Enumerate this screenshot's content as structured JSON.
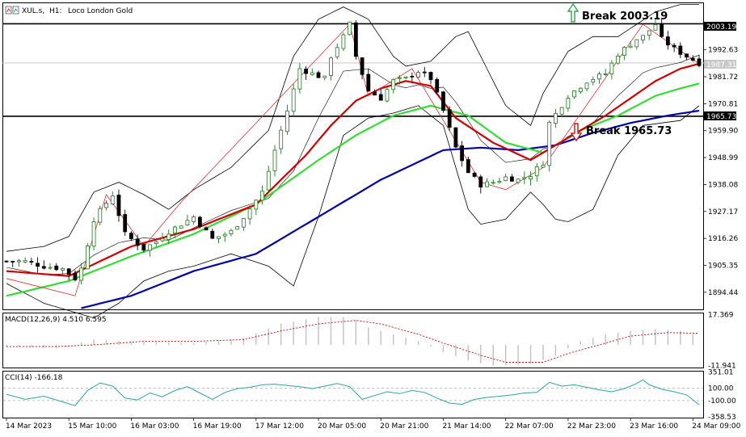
{
  "header": {
    "symbol": "XUL.s,",
    "timeframe": "H1:",
    "instrument": "Loco London Gold"
  },
  "annotations": {
    "break_up": "Break 2003.19",
    "break_down": "Break 1965.73"
  },
  "price_tags": {
    "resistance": "2003.19",
    "current": "1987.31",
    "support": "1965.73"
  },
  "panels": {
    "macd_label": "MACD(12,26,9) 4.510 6.595",
    "cci_label": "CCI(14) -166.18"
  },
  "colors": {
    "bull_candle": "#1a7a1a",
    "bear_candle": "#000000",
    "ma_red": "#d40000",
    "ma_green": "#33dd33",
    "ma_blue": "#0000aa",
    "bollinger": "#000000",
    "zigzag": "#e03030",
    "macd_hist": "#c0c0c0",
    "macd_signal": "#d40000",
    "cci_line": "#2aa3a8",
    "arrow_up": "#3aaa5a",
    "arrow_down": "#cc2222"
  },
  "chart_data": [
    {
      "type": "candlestick",
      "title": "XUL.s, H1: Loco London Gold",
      "yaxis_ticks": [
        1894.44,
        1905.35,
        1916.26,
        1927.17,
        1938.08,
        1948.99,
        1959.9,
        1970.81,
        1981.72,
        1992.63
      ],
      "ylim": [
        1887.5,
        2011.5
      ],
      "xaxis_ticks": [
        "14 Mar 2023",
        "15 Mar 10:00",
        "16 Mar 03:00",
        "16 Mar 19:00",
        "17 Mar 12:00",
        "20 Mar 05:00",
        "20 Mar 21:00",
        "21 Mar 14:00",
        "22 Mar 07:00",
        "22 Mar 23:00",
        "23 Mar 16:00",
        "24 Mar 09:00"
      ],
      "xaxis_tick_index": [
        0,
        10,
        20,
        30,
        40,
        50,
        60,
        70,
        80,
        90,
        100,
        110
      ],
      "horizontal_levels": [
        2003.19,
        1965.73
      ],
      "current_price": 1987.31,
      "price_path": [
        [
          0,
          1907
        ],
        [
          3,
          1907
        ],
        [
          6,
          1905
        ],
        [
          9,
          1904
        ],
        [
          11,
          1900
        ],
        [
          12,
          1904
        ],
        [
          14,
          1924
        ],
        [
          17,
          1934
        ],
        [
          19,
          1918
        ],
        [
          22,
          1912
        ],
        [
          24,
          1915
        ],
        [
          26,
          1919
        ],
        [
          28,
          1922
        ],
        [
          30,
          1925
        ],
        [
          33,
          1916
        ],
        [
          36,
          1919
        ],
        [
          38,
          1925
        ],
        [
          41,
          1935
        ],
        [
          43,
          1952
        ],
        [
          45,
          1968
        ],
        [
          47,
          1985
        ],
        [
          49,
          1983
        ],
        [
          51,
          1981
        ],
        [
          52,
          1990
        ],
        [
          54,
          1998
        ],
        [
          55,
          2003
        ],
        [
          56,
          1990
        ],
        [
          58,
          1976
        ],
        [
          60,
          1973
        ],
        [
          62,
          1980
        ],
        [
          64,
          1981
        ],
        [
          66,
          1984
        ],
        [
          68,
          1981
        ],
        [
          70,
          1968
        ],
        [
          72,
          1953
        ],
        [
          74,
          1943
        ],
        [
          76,
          1938
        ],
        [
          78,
          1939
        ],
        [
          80,
          1941
        ],
        [
          82,
          1940
        ],
        [
          84,
          1942
        ],
        [
          86,
          1947
        ],
        [
          87,
          1963
        ],
        [
          90,
          1974
        ],
        [
          93,
          1980
        ],
        [
          96,
          1983
        ],
        [
          98,
          1991
        ],
        [
          101,
          1997
        ],
        [
          102,
          1998
        ],
        [
          104,
          2003
        ],
        [
          105,
          1997
        ],
        [
          107,
          1993
        ],
        [
          109,
          1990
        ],
        [
          111,
          1987.31
        ]
      ],
      "ma_red": [
        [
          0,
          1903
        ],
        [
          10,
          1901
        ],
        [
          20,
          1913
        ],
        [
          30,
          1920
        ],
        [
          40,
          1930
        ],
        [
          48,
          1950
        ],
        [
          52,
          1962
        ],
        [
          56,
          1972
        ],
        [
          60,
          1977
        ],
        [
          64,
          1980
        ],
        [
          68,
          1978
        ],
        [
          72,
          1965
        ],
        [
          78,
          1955
        ],
        [
          84,
          1948
        ],
        [
          90,
          1957
        ],
        [
          96,
          1966
        ],
        [
          100,
          1973
        ],
        [
          104,
          1980
        ],
        [
          108,
          1985
        ],
        [
          111,
          1987
        ]
      ],
      "ma_green": [
        [
          0,
          1893
        ],
        [
          10,
          1899
        ],
        [
          20,
          1909
        ],
        [
          30,
          1918
        ],
        [
          40,
          1930
        ],
        [
          50,
          1948
        ],
        [
          56,
          1958
        ],
        [
          62,
          1966
        ],
        [
          68,
          1970
        ],
        [
          74,
          1966
        ],
        [
          80,
          1955
        ],
        [
          86,
          1951
        ],
        [
          92,
          1960
        ],
        [
          98,
          1966
        ],
        [
          104,
          1974
        ],
        [
          108,
          1977
        ],
        [
          111,
          1979
        ]
      ],
      "ma_blue": [
        [
          12,
          1888
        ],
        [
          20,
          1893
        ],
        [
          30,
          1903
        ],
        [
          40,
          1910
        ],
        [
          50,
          1925
        ],
        [
          60,
          1940
        ],
        [
          70,
          1952
        ],
        [
          76,
          1953
        ],
        [
          82,
          1952
        ],
        [
          88,
          1954
        ],
        [
          94,
          1959
        ],
        [
          100,
          1963
        ],
        [
          106,
          1966
        ],
        [
          111,
          1968
        ]
      ],
      "boll_upper": [
        [
          0,
          1911
        ],
        [
          6,
          1913
        ],
        [
          10,
          1917
        ],
        [
          14,
          1935
        ],
        [
          18,
          1939
        ],
        [
          22,
          1934
        ],
        [
          26,
          1928
        ],
        [
          30,
          1936
        ],
        [
          36,
          1945
        ],
        [
          42,
          1960
        ],
        [
          46,
          1990
        ],
        [
          50,
          2005
        ],
        [
          54,
          2010
        ],
        [
          58,
          2005
        ],
        [
          62,
          1990
        ],
        [
          64,
          1986
        ],
        [
          68,
          1988
        ],
        [
          72,
          1998
        ],
        [
          74,
          2000
        ],
        [
          76,
          1990
        ],
        [
          80,
          1970
        ],
        [
          84,
          1962
        ],
        [
          86,
          1975
        ],
        [
          90,
          1992
        ],
        [
          94,
          1998
        ],
        [
          98,
          1998
        ],
        [
          101,
          2003
        ],
        [
          104,
          2008
        ],
        [
          108,
          2011
        ],
        [
          111,
          2011
        ]
      ],
      "boll_lower": [
        [
          0,
          1898
        ],
        [
          6,
          1890
        ],
        [
          10,
          1887
        ],
        [
          14,
          1884
        ],
        [
          18,
          1890
        ],
        [
          22,
          1899
        ],
        [
          26,
          1903
        ],
        [
          30,
          1905
        ],
        [
          36,
          1910
        ],
        [
          42,
          1905
        ],
        [
          46,
          1897
        ],
        [
          50,
          1925
        ],
        [
          54,
          1958
        ],
        [
          58,
          1965
        ],
        [
          62,
          1967
        ],
        [
          66,
          1970
        ],
        [
          70,
          1962
        ],
        [
          72,
          1945
        ],
        [
          74,
          1928
        ],
        [
          76,
          1922
        ],
        [
          80,
          1924
        ],
        [
          84,
          1935
        ],
        [
          86,
          1930
        ],
        [
          88,
          1924
        ],
        [
          90,
          1923
        ],
        [
          94,
          1928
        ],
        [
          98,
          1950
        ],
        [
          102,
          1962
        ],
        [
          108,
          1964
        ],
        [
          111,
          1970
        ]
      ],
      "zigzag": [
        [
          0,
          1900
        ],
        [
          11,
          1893
        ],
        [
          16,
          1934
        ],
        [
          22,
          1913
        ],
        [
          28,
          1931
        ],
        [
          55,
          2003
        ],
        [
          58,
          1974
        ],
        [
          65,
          1985
        ],
        [
          76,
          1939
        ],
        [
          80,
          1936
        ],
        [
          86,
          1945
        ],
        [
          102,
          2003
        ],
        [
          111,
          1987
        ]
      ]
    },
    {
      "type": "bar",
      "title": "MACD(12,26,9) 4.510 6.595",
      "yaxis_ticks": [
        17.369,
        -11.941
      ],
      "ylim": [
        -13,
        18
      ],
      "macd_hist": [
        [
          0,
          -1
        ],
        [
          8,
          -2
        ],
        [
          14,
          3
        ],
        [
          20,
          2
        ],
        [
          30,
          1
        ],
        [
          38,
          4
        ],
        [
          44,
          12
        ],
        [
          50,
          16
        ],
        [
          55,
          16
        ],
        [
          58,
          10
        ],
        [
          62,
          6
        ],
        [
          66,
          2
        ],
        [
          70,
          -4
        ],
        [
          74,
          -9
        ],
        [
          78,
          -12
        ],
        [
          84,
          -11
        ],
        [
          88,
          -6
        ],
        [
          92,
          2
        ],
        [
          96,
          6
        ],
        [
          100,
          8
        ],
        [
          104,
          9
        ],
        [
          108,
          8
        ],
        [
          111,
          5
        ]
      ],
      "signal": [
        [
          0,
          -1
        ],
        [
          8,
          -1
        ],
        [
          14,
          0
        ],
        [
          22,
          2
        ],
        [
          30,
          2
        ],
        [
          38,
          3
        ],
        [
          44,
          8
        ],
        [
          50,
          12
        ],
        [
          56,
          14
        ],
        [
          60,
          12
        ],
        [
          66,
          6
        ],
        [
          70,
          1
        ],
        [
          76,
          -6
        ],
        [
          80,
          -10
        ],
        [
          86,
          -10
        ],
        [
          90,
          -5
        ],
        [
          96,
          1
        ],
        [
          100,
          5
        ],
        [
          106,
          7
        ],
        [
          111,
          6.6
        ]
      ]
    },
    {
      "type": "line",
      "title": "CCI(14) -166.18",
      "yaxis_ticks": [
        351.01,
        100.0,
        -100.0,
        -358.53
      ],
      "ylim": [
        -370,
        360
      ],
      "levels": [
        100,
        -100
      ],
      "cci": [
        [
          0,
          0
        ],
        [
          3,
          -80
        ],
        [
          6,
          -30
        ],
        [
          9,
          -120
        ],
        [
          11,
          -180
        ],
        [
          13,
          60
        ],
        [
          15,
          180
        ],
        [
          17,
          130
        ],
        [
          19,
          -60
        ],
        [
          21,
          -90
        ],
        [
          23,
          20
        ],
        [
          25,
          -40
        ],
        [
          27,
          60
        ],
        [
          29,
          120
        ],
        [
          31,
          20
        ],
        [
          33,
          -80
        ],
        [
          35,
          30
        ],
        [
          37,
          90
        ],
        [
          39,
          110
        ],
        [
          41,
          150
        ],
        [
          43,
          160
        ],
        [
          45,
          140
        ],
        [
          47,
          120
        ],
        [
          49,
          90
        ],
        [
          51,
          130
        ],
        [
          53,
          170
        ],
        [
          55,
          120
        ],
        [
          57,
          -80
        ],
        [
          59,
          -20
        ],
        [
          61,
          40
        ],
        [
          63,
          10
        ],
        [
          65,
          60
        ],
        [
          67,
          30
        ],
        [
          69,
          -60
        ],
        [
          71,
          -140
        ],
        [
          73,
          -160
        ],
        [
          75,
          -80
        ],
        [
          77,
          -50
        ],
        [
          79,
          -30
        ],
        [
          81,
          -10
        ],
        [
          83,
          20
        ],
        [
          85,
          30
        ],
        [
          86,
          110
        ],
        [
          87,
          190
        ],
        [
          89,
          130
        ],
        [
          91,
          150
        ],
        [
          93,
          110
        ],
        [
          95,
          70
        ],
        [
          97,
          40
        ],
        [
          99,
          90
        ],
        [
          101,
          170
        ],
        [
          102,
          230
        ],
        [
          103,
          150
        ],
        [
          105,
          80
        ],
        [
          107,
          40
        ],
        [
          109,
          -10
        ],
        [
          111,
          -166
        ]
      ]
    }
  ]
}
